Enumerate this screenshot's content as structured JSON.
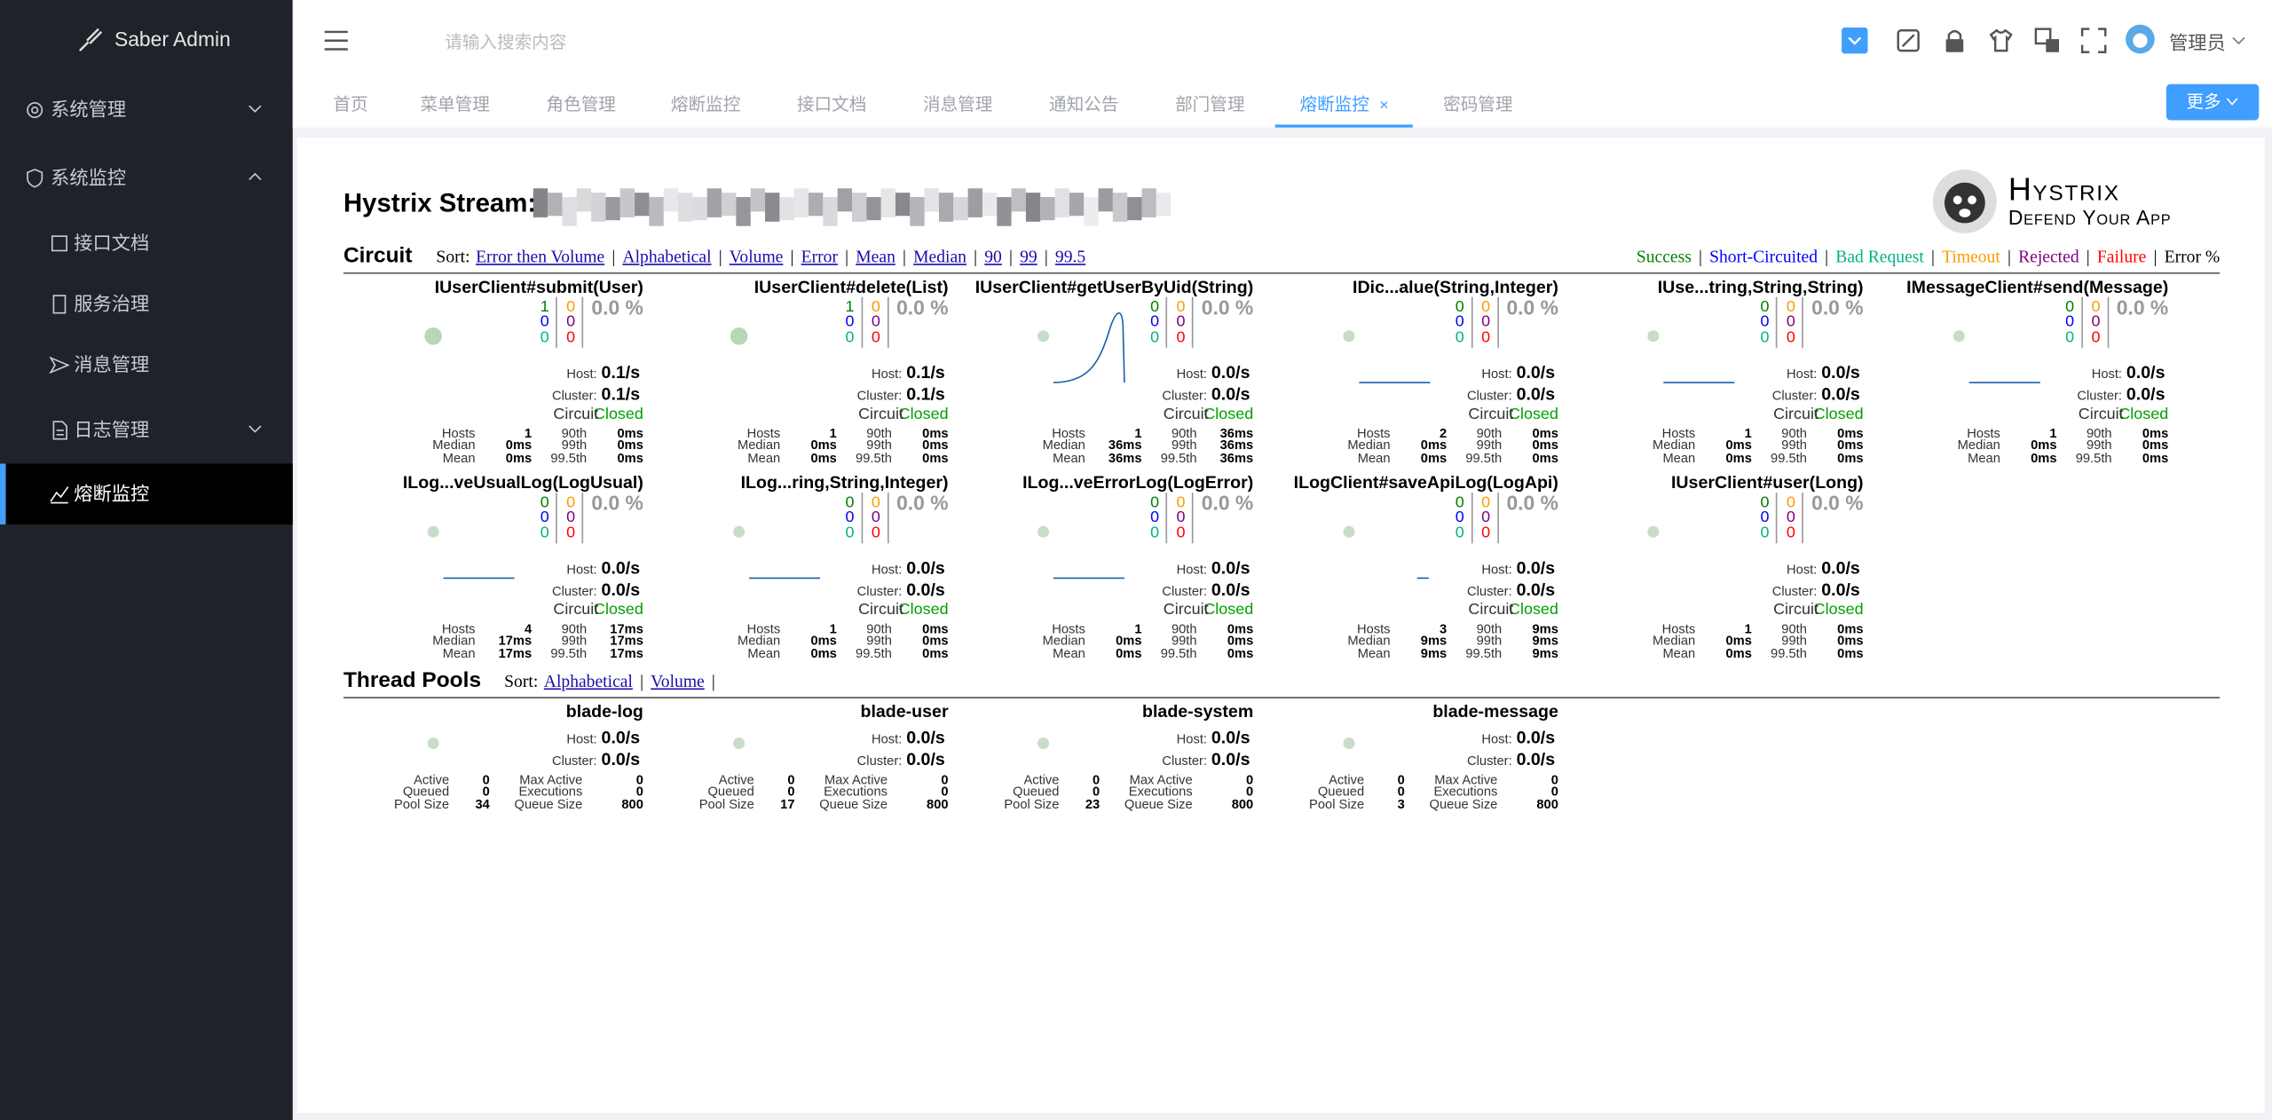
{
  "sidebar": {
    "brand": "Saber Admin",
    "menu": [
      "系统管理",
      "系统监控",
      "接口文档",
      "服务治理",
      "消息管理",
      "日志管理",
      "熔断监控"
    ]
  },
  "header": {
    "search_placeholder": "请输入搜索内容",
    "user": "管理员"
  },
  "tabs": {
    "items": [
      "首页",
      "菜单管理",
      "角色管理",
      "熔断监控",
      "接口文档",
      "消息管理",
      "通知公告",
      "部门管理",
      "熔断监控",
      "密码管理"
    ],
    "more": "更多"
  },
  "hystrix": {
    "title": "Hystrix Stream:",
    "logo_title": "Hystrix",
    "logo_subtitle": "Defend Your App",
    "separator": "|",
    "sort_label": "Sort:",
    "labels": {
      "host": "Host:",
      "cluster": "Cluster:",
      "circuit": "Circuit",
      "hosts": "Hosts",
      "median": "Median",
      "mean": "Mean",
      "p90": "90th",
      "p99": "99th",
      "p995": "99.5th",
      "active": "Active",
      "queued": "Queued",
      "pool_size": "Pool Size",
      "max_active": "Max Active",
      "executions": "Executions",
      "queue_size": "Queue Size"
    },
    "circuit": {
      "heading": "Circuit",
      "sort_options": [
        "Error then Volume",
        "Alphabetical",
        "Volume",
        "Error",
        "Mean",
        "Median",
        "90",
        "99",
        "99.5"
      ],
      "legend": [
        "Success",
        "Short-Circuited",
        "Bad Request",
        "Timeout",
        "Rejected",
        "Failure",
        "Error %"
      ],
      "items": [
        {
          "name": "IUserClient#submit(User)",
          "success": 1,
          "short_circuited": 0,
          "bad_request": 0,
          "timeout": 0,
          "rejected": 0,
          "failure": 0,
          "error_pct": "0.0 %",
          "host": "0.1/s",
          "cluster": "0.1/s",
          "status": "Closed",
          "hosts": 1,
          "median": "0ms",
          "mean": "0ms",
          "p90": "0ms",
          "p99": "0ms",
          "p995": "0ms"
        },
        {
          "name": "IUserClient#delete(List)",
          "success": 1,
          "short_circuited": 0,
          "bad_request": 0,
          "timeout": 0,
          "rejected": 0,
          "failure": 0,
          "error_pct": "0.0 %",
          "host": "0.1/s",
          "cluster": "0.1/s",
          "status": "Closed",
          "hosts": 1,
          "median": "0ms",
          "mean": "0ms",
          "p90": "0ms",
          "p99": "0ms",
          "p995": "0ms"
        },
        {
          "name": "IUserClient#getUserByUid(String)",
          "success": 0,
          "short_circuited": 0,
          "bad_request": 0,
          "timeout": 0,
          "rejected": 0,
          "failure": 0,
          "error_pct": "0.0 %",
          "host": "0.0/s",
          "cluster": "0.0/s",
          "status": "Closed",
          "hosts": 1,
          "median": "36ms",
          "mean": "36ms",
          "p90": "36ms",
          "p99": "36ms",
          "p995": "36ms"
        },
        {
          "name": "IDic...alue(String,Integer)",
          "success": 0,
          "short_circuited": 0,
          "bad_request": 0,
          "timeout": 0,
          "rejected": 0,
          "failure": 0,
          "error_pct": "0.0 %",
          "host": "0.0/s",
          "cluster": "0.0/s",
          "status": "Closed",
          "hosts": 2,
          "median": "0ms",
          "mean": "0ms",
          "p90": "0ms",
          "p99": "0ms",
          "p995": "0ms"
        },
        {
          "name": "IUse...tring,String,String)",
          "success": 0,
          "short_circuited": 0,
          "bad_request": 0,
          "timeout": 0,
          "rejected": 0,
          "failure": 0,
          "error_pct": "0.0 %",
          "host": "0.0/s",
          "cluster": "0.0/s",
          "status": "Closed",
          "hosts": 1,
          "median": "0ms",
          "mean": "0ms",
          "p90": "0ms",
          "p99": "0ms",
          "p995": "0ms"
        },
        {
          "name": "IMessageClient#send(Message)",
          "success": 0,
          "short_circuited": 0,
          "bad_request": 0,
          "timeout": 0,
          "rejected": 0,
          "failure": 0,
          "error_pct": "0.0 %",
          "host": "0.0/s",
          "cluster": "0.0/s",
          "status": "Closed",
          "hosts": 1,
          "median": "0ms",
          "mean": "0ms",
          "p90": "0ms",
          "p99": "0ms",
          "p995": "0ms"
        },
        {
          "name": "ILog...veUsualLog(LogUsual)",
          "success": 0,
          "short_circuited": 0,
          "bad_request": 0,
          "timeout": 0,
          "rejected": 0,
          "failure": 0,
          "error_pct": "0.0 %",
          "host": "0.0/s",
          "cluster": "0.0/s",
          "status": "Closed",
          "hosts": 4,
          "median": "17ms",
          "mean": "17ms",
          "p90": "17ms",
          "p99": "17ms",
          "p995": "17ms"
        },
        {
          "name": "ILog...ring,String,Integer)",
          "success": 0,
          "short_circuited": 0,
          "bad_request": 0,
          "timeout": 0,
          "rejected": 0,
          "failure": 0,
          "error_pct": "0.0 %",
          "host": "0.0/s",
          "cluster": "0.0/s",
          "status": "Closed",
          "hosts": 1,
          "median": "0ms",
          "mean": "0ms",
          "p90": "0ms",
          "p99": "0ms",
          "p995": "0ms"
        },
        {
          "name": "ILog...veErrorLog(LogError)",
          "success": 0,
          "short_circuited": 0,
          "bad_request": 0,
          "timeout": 0,
          "rejected": 0,
          "failure": 0,
          "error_pct": "0.0 %",
          "host": "0.0/s",
          "cluster": "0.0/s",
          "status": "Closed",
          "hosts": 1,
          "median": "0ms",
          "mean": "0ms",
          "p90": "0ms",
          "p99": "0ms",
          "p995": "0ms"
        },
        {
          "name": "ILogClient#saveApiLog(LogApi)",
          "success": 0,
          "short_circuited": 0,
          "bad_request": 0,
          "timeout": 0,
          "rejected": 0,
          "failure": 0,
          "error_pct": "0.0 %",
          "host": "0.0/s",
          "cluster": "0.0/s",
          "status": "Closed",
          "hosts": 3,
          "median": "9ms",
          "mean": "9ms",
          "p90": "9ms",
          "p99": "9ms",
          "p995": "9ms"
        },
        {
          "name": "IUserClient#user(Long)",
          "success": 0,
          "short_circuited": 0,
          "bad_request": 0,
          "timeout": 0,
          "rejected": 0,
          "failure": 0,
          "error_pct": "0.0 %",
          "host": "0.0/s",
          "cluster": "0.0/s",
          "status": "Closed",
          "hosts": 1,
          "median": "0ms",
          "mean": "0ms",
          "p90": "0ms",
          "p99": "0ms",
          "p995": "0ms"
        }
      ]
    },
    "thread_pools": {
      "heading": "Thread Pools",
      "sort_options": [
        "Alphabetical",
        "Volume"
      ],
      "items": [
        {
          "name": "blade-log",
          "host": "0.0/s",
          "cluster": "0.0/s",
          "active": 0,
          "queued": 0,
          "pool_size": 34,
          "max_active": 0,
          "executions": 0,
          "queue_size": 800
        },
        {
          "name": "blade-user",
          "host": "0.0/s",
          "cluster": "0.0/s",
          "active": 0,
          "queued": 0,
          "pool_size": 17,
          "max_active": 0,
          "executions": 0,
          "queue_size": 800
        },
        {
          "name": "blade-system",
          "host": "0.0/s",
          "cluster": "0.0/s",
          "active": 0,
          "queued": 0,
          "pool_size": 23,
          "max_active": 0,
          "executions": 0,
          "queue_size": 800
        },
        {
          "name": "blade-message",
          "host": "0.0/s",
          "cluster": "0.0/s",
          "active": 0,
          "queued": 0,
          "pool_size": 3,
          "max_active": 0,
          "executions": 0,
          "queue_size": 800
        }
      ]
    }
  }
}
